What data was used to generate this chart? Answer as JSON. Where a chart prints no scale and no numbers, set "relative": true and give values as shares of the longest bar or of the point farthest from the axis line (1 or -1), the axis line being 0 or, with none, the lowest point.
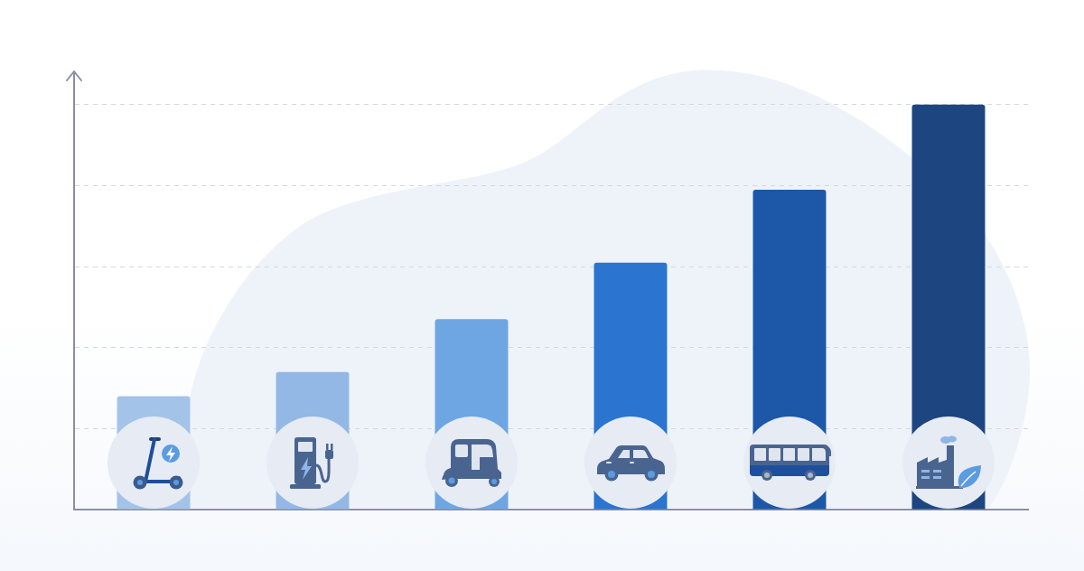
{
  "chart_data": {
    "type": "bar",
    "relative": true,
    "categories": [
      null,
      null,
      null,
      null,
      null,
      null
    ],
    "values": [
      0.28,
      0.34,
      0.47,
      0.61,
      0.79,
      1
    ],
    "colors": [
      "#a4c3e9",
      "#93b8e6",
      "#6ea6e3",
      "#2b74d0",
      "#1c58a7",
      "#1d4580"
    ],
    "grid": "y",
    "tick_labels": false
  }
}
